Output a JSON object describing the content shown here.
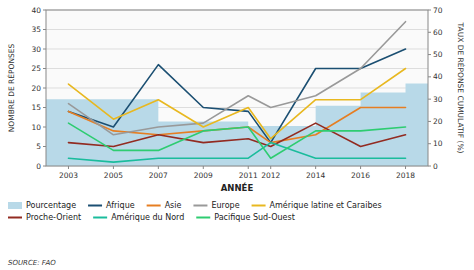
{
  "chart_data": {
    "type": "line",
    "xlabel": "ANNÉE",
    "ylabel": "NOMBRE DE RÉPONSES",
    "y2label": "TAUX DE RÉPONSE CUMULATIF (%)",
    "x": [
      2003,
      2005,
      2007,
      2009,
      2011,
      2012,
      2014,
      2016,
      2018
    ],
    "xlim": [
      2002,
      2019
    ],
    "xticks": [
      2003,
      2005,
      2007,
      2009,
      2011,
      2012,
      2014,
      2016,
      2018
    ],
    "ylim": [
      0,
      40
    ],
    "yticks": [
      0,
      5,
      10,
      15,
      20,
      25,
      30,
      35,
      40
    ],
    "y2lim": [
      0,
      70
    ],
    "y2ticks": [
      0,
      10,
      20,
      30,
      40,
      50,
      60,
      70
    ],
    "grid": true,
    "legend": "bottom",
    "series": [
      {
        "name": "Pourcentage",
        "type": "area",
        "line_style": "step",
        "axis": "y2",
        "color": "#b8d9e8",
        "x": [
          2002,
          2003,
          2005,
          2007,
          2009,
          2011,
          2012,
          2014,
          2016,
          2018,
          2019
        ],
        "values": [
          30,
          30,
          30,
          20,
          20,
          18,
          18,
          27,
          33,
          37,
          37
        ]
      },
      {
        "name": "Afrique",
        "type": "line",
        "color": "#1b4f72",
        "values": [
          14,
          10,
          26,
          15,
          14,
          6,
          25,
          25,
          30
        ]
      },
      {
        "name": "Asie",
        "type": "line",
        "color": "#e67e22",
        "values": [
          14,
          9,
          8,
          9,
          10,
          6,
          8,
          15,
          15
        ]
      },
      {
        "name": "Europe",
        "type": "line",
        "color": "#999999",
        "values": [
          16,
          8,
          10,
          11,
          18,
          15,
          18,
          25,
          37
        ]
      },
      {
        "name": "Amérique latine et Caraibes",
        "type": "line",
        "color": "#e8b820",
        "values": [
          21,
          12,
          17,
          10,
          15,
          7,
          17,
          17,
          25
        ]
      },
      {
        "name": "Proche-Orient",
        "type": "line",
        "color": "#922b21",
        "values": [
          6,
          5,
          8,
          6,
          7,
          5,
          11,
          5,
          8
        ]
      },
      {
        "name": "Amérique du Nord",
        "type": "line",
        "color": "#1abc9c",
        "values": [
          2,
          1,
          2,
          2,
          2,
          6,
          2,
          2,
          2
        ]
      },
      {
        "name": "Pacifique Sud-Ouest",
        "type": "line",
        "color": "#2ecc71",
        "values": [
          11,
          4,
          4,
          9,
          10,
          2,
          9,
          9,
          10
        ]
      }
    ],
    "annotations": [
      "SOURCE: FAO"
    ]
  }
}
